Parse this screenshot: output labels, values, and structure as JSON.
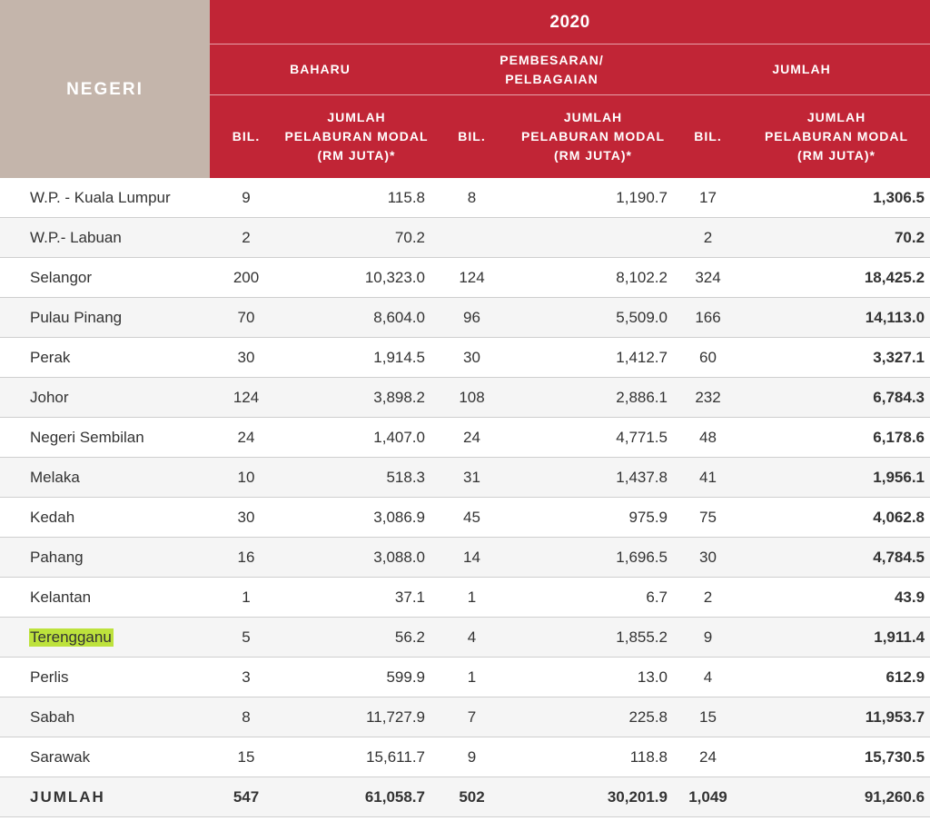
{
  "header": {
    "negeri": "NEGERI",
    "year": "2020",
    "groups": [
      "BAHARU",
      "PEMBESARAN/\nPELBAGAIAN",
      "JUMLAH"
    ],
    "bil": "BIL.",
    "jumlah_pelaburan": "JUMLAH\nPELABURAN MODAL\n(RM JUTA)*"
  },
  "rows": [
    [
      "W.P. - Kuala Lumpur",
      "9",
      "115.8",
      "8",
      "1,190.7",
      "17",
      "1,306.5"
    ],
    [
      "W.P.- Labuan",
      "2",
      "70.2",
      "",
      "",
      "2",
      "70.2"
    ],
    [
      "Selangor",
      "200",
      "10,323.0",
      "124",
      "8,102.2",
      "324",
      "18,425.2"
    ],
    [
      "Pulau Pinang",
      "70",
      "8,604.0",
      "96",
      "5,509.0",
      "166",
      "14,113.0"
    ],
    [
      "Perak",
      "30",
      "1,914.5",
      "30",
      "1,412.7",
      "60",
      "3,327.1"
    ],
    [
      "Johor",
      "124",
      "3,898.2",
      "108",
      "2,886.1",
      "232",
      "6,784.3"
    ],
    [
      "Negeri Sembilan",
      "24",
      "1,407.0",
      "24",
      "4,771.5",
      "48",
      "6,178.6"
    ],
    [
      "Melaka",
      "10",
      "518.3",
      "31",
      "1,437.8",
      "41",
      "1,956.1"
    ],
    [
      "Kedah",
      "30",
      "3,086.9",
      "45",
      "975.9",
      "75",
      "4,062.8"
    ],
    [
      "Pahang",
      "16",
      "3,088.0",
      "14",
      "1,696.5",
      "30",
      "4,784.5"
    ],
    [
      "Kelantan",
      "1",
      "37.1",
      "1",
      "6.7",
      "2",
      "43.9"
    ],
    [
      "Terengganu",
      "5",
      "56.2",
      "4",
      "1,855.2",
      "9",
      "1,911.4"
    ],
    [
      "Perlis",
      "3",
      "599.9",
      "1",
      "13.0",
      "4",
      "612.9"
    ],
    [
      "Sabah",
      "8",
      "11,727.9",
      "7",
      "225.8",
      "15",
      "11,953.7"
    ],
    [
      "Sarawak",
      "15",
      "15,611.7",
      "9",
      "118.8",
      "24",
      "15,730.5"
    ]
  ],
  "highlighted_row": "Terengganu",
  "highlight_color": "#bde23c",
  "total": [
    "JUMLAH",
    "547",
    "61,058.7",
    "502",
    "30,201.9",
    "1,049",
    "91,260.6"
  ],
  "colors": {
    "header_red": "#c12536",
    "header_tan": "#c4b5ab"
  }
}
